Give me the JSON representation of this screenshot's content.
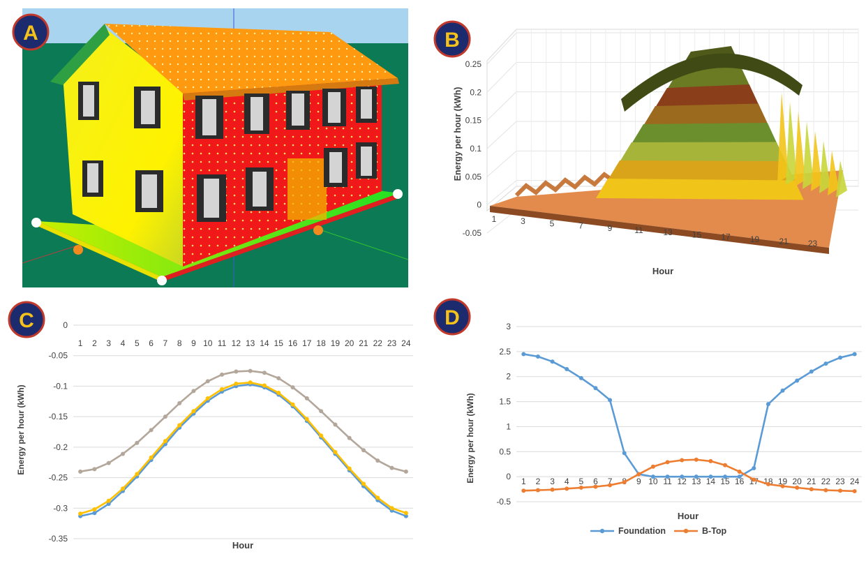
{
  "panels": {
    "a": {
      "label": "A"
    },
    "b": {
      "label": "B"
    },
    "c": {
      "label": "C"
    },
    "d": {
      "label": "D"
    }
  },
  "colors": {
    "badge_fill": "#1c2a6e",
    "badge_ring": "#c0392b",
    "badge_letter": "#f4c21a",
    "sky": "#a8d4f0",
    "ground": "#0b7a55",
    "series_blue": "#5b9bd5",
    "series_orange": "#ed7d31",
    "series_gray": "#b3a69a",
    "series_yellow": "#ffc000"
  },
  "chart_data": [
    {
      "id": "B",
      "type": "area",
      "description_3d": true,
      "ylabel": "Energy per hour (kWh)",
      "xlabel": "Hour",
      "y_ticks": [
        "0.25",
        "0.2",
        "0.15",
        "0.1",
        "0.05",
        "0",
        "-0.05"
      ],
      "ylim": [
        -0.05,
        0.25
      ],
      "x_ticks": [
        "1",
        "3",
        "5",
        "7",
        "9",
        "11",
        "13",
        "15",
        "17",
        "19",
        "21",
        "23"
      ],
      "grid": true
    },
    {
      "id": "C",
      "type": "line",
      "ylabel": "Energy per hour (kWh)",
      "xlabel": "Hour",
      "ylim": [
        -0.35,
        0
      ],
      "y_ticks": [
        "0",
        "-0.05",
        "-0.1",
        "-0.15",
        "-0.2",
        "-0.25",
        "-0.3",
        "-0.35"
      ],
      "categories": [
        "1",
        "2",
        "3",
        "4",
        "5",
        "6",
        "7",
        "8",
        "9",
        "10",
        "11",
        "12",
        "13",
        "14",
        "15",
        "16",
        "17",
        "18",
        "19",
        "20",
        "21",
        "22",
        "23",
        "24"
      ],
      "x_axis_position": "top",
      "grid": true,
      "series": [
        {
          "color": "#b3a69a",
          "values": [
            -0.24,
            -0.236,
            -0.226,
            -0.211,
            -0.193,
            -0.172,
            -0.15,
            -0.128,
            -0.108,
            -0.092,
            -0.081,
            -0.076,
            -0.075,
            -0.078,
            -0.087,
            -0.102,
            -0.12,
            -0.141,
            -0.163,
            -0.185,
            -0.205,
            -0.222,
            -0.234,
            -0.24
          ]
        },
        {
          "color": "#5b9bd5",
          "values": [
            -0.313,
            -0.308,
            -0.293,
            -0.272,
            -0.248,
            -0.221,
            -0.195,
            -0.168,
            -0.145,
            -0.124,
            -0.109,
            -0.1,
            -0.097,
            -0.102,
            -0.114,
            -0.133,
            -0.157,
            -0.184,
            -0.211,
            -0.238,
            -0.264,
            -0.287,
            -0.304,
            -0.313
          ]
        },
        {
          "color": "#ffc000",
          "values": [
            -0.309,
            -0.302,
            -0.288,
            -0.268,
            -0.244,
            -0.217,
            -0.19,
            -0.164,
            -0.141,
            -0.12,
            -0.105,
            -0.096,
            -0.094,
            -0.099,
            -0.111,
            -0.13,
            -0.154,
            -0.181,
            -0.208,
            -0.235,
            -0.26,
            -0.283,
            -0.3,
            -0.308
          ]
        }
      ]
    },
    {
      "id": "D",
      "type": "line",
      "ylabel": "Energy per hour (kWh)",
      "xlabel": "Hour",
      "ylim": [
        -0.5,
        3
      ],
      "y_ticks": [
        "3",
        "2.5",
        "2",
        "1.5",
        "1",
        "0.5",
        "0",
        "-0.5"
      ],
      "categories": [
        "1",
        "2",
        "3",
        "4",
        "5",
        "6",
        "7",
        "8",
        "9",
        "10",
        "11",
        "12",
        "13",
        "14",
        "15",
        "16",
        "17",
        "18",
        "19",
        "20",
        "21",
        "22",
        "23",
        "24"
      ],
      "legend": "bottom",
      "grid": true,
      "series": [
        {
          "name": "Foundation",
          "color": "#5b9bd5",
          "values": [
            2.45,
            2.4,
            2.3,
            2.15,
            1.97,
            1.77,
            1.53,
            0.47,
            0.05,
            0,
            0,
            0,
            0,
            0,
            0,
            0,
            0.17,
            1.45,
            1.72,
            1.92,
            2.1,
            2.26,
            2.38,
            2.45
          ]
        },
        {
          "name": "B-Top",
          "color": "#ed7d31",
          "values": [
            -0.28,
            -0.27,
            -0.26,
            -0.24,
            -0.22,
            -0.2,
            -0.17,
            -0.11,
            0.05,
            0.2,
            0.29,
            0.33,
            0.34,
            0.31,
            0.23,
            0.1,
            -0.06,
            -0.15,
            -0.19,
            -0.22,
            -0.25,
            -0.27,
            -0.28,
            -0.29
          ]
        }
      ]
    }
  ]
}
